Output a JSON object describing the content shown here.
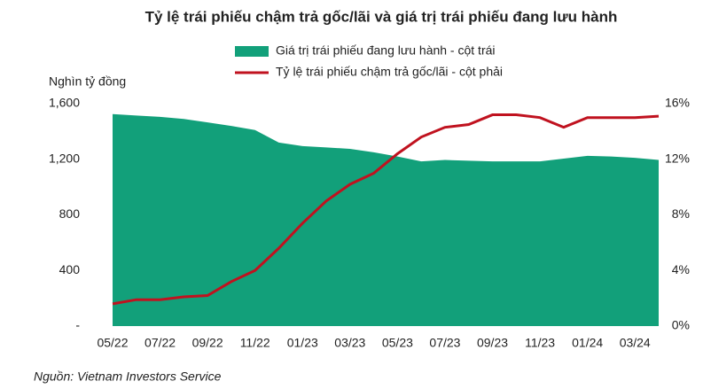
{
  "chart_data": {
    "type": "combo",
    "title": "Tỷ lệ trái phiếu chậm trả gốc/lãi và giá trị trái phiếu đang lưu hành",
    "y_label": "Nghìn tỷ đồng",
    "source": "Nguồn: Vietnam Investors Service",
    "categories": [
      "05/22",
      null,
      "07/22",
      null,
      "09/22",
      null,
      "11/22",
      null,
      "01/23",
      null,
      "03/23",
      null,
      "05/23",
      null,
      "07/23",
      null,
      "09/23",
      null,
      "11/23",
      null,
      "01/24",
      null,
      "03/24",
      null
    ],
    "series": [
      {
        "name": "Giá trị trái phiếu đang lưu hành - cột trái",
        "type": "area",
        "color": "#12a07a",
        "values": [
          1525,
          1515,
          1505,
          1490,
          1465,
          1440,
          1410,
          1320,
          1295,
          1285,
          1275,
          1250,
          1220,
          1185,
          1195,
          1190,
          1185,
          1185,
          1185,
          1205,
          1225,
          1220,
          1210,
          1195
        ]
      },
      {
        "name": "Tỷ lệ trái phiếu chậm trả gốc/lãi - cột phải",
        "type": "line",
        "axis": "y2",
        "color": "#c0121f",
        "values": [
          1.6,
          1.9,
          1.9,
          2.1,
          2.2,
          3.2,
          4.0,
          5.6,
          7.4,
          9.0,
          10.2,
          11.0,
          12.4,
          13.6,
          14.3,
          14.5,
          15.2,
          15.2,
          15.0,
          14.3,
          15.0,
          15.0,
          15.0,
          15.1
        ]
      }
    ],
    "ylim": [
      0,
      1600
    ],
    "yticks": [
      {
        "value": 0,
        "label": "-"
      },
      400,
      800,
      {
        "value": 1200,
        "label": "1,200"
      },
      {
        "value": 1600,
        "label": "1,600"
      }
    ],
    "y2lim": [
      0,
      16
    ],
    "y2ticks": [
      {
        "value": 0,
        "label": "0%"
      },
      {
        "value": 4,
        "label": "4%"
      },
      {
        "value": 8,
        "label": "8%"
      },
      {
        "value": 12,
        "label": "12%"
      },
      {
        "value": 16,
        "label": "16%"
      }
    ]
  }
}
